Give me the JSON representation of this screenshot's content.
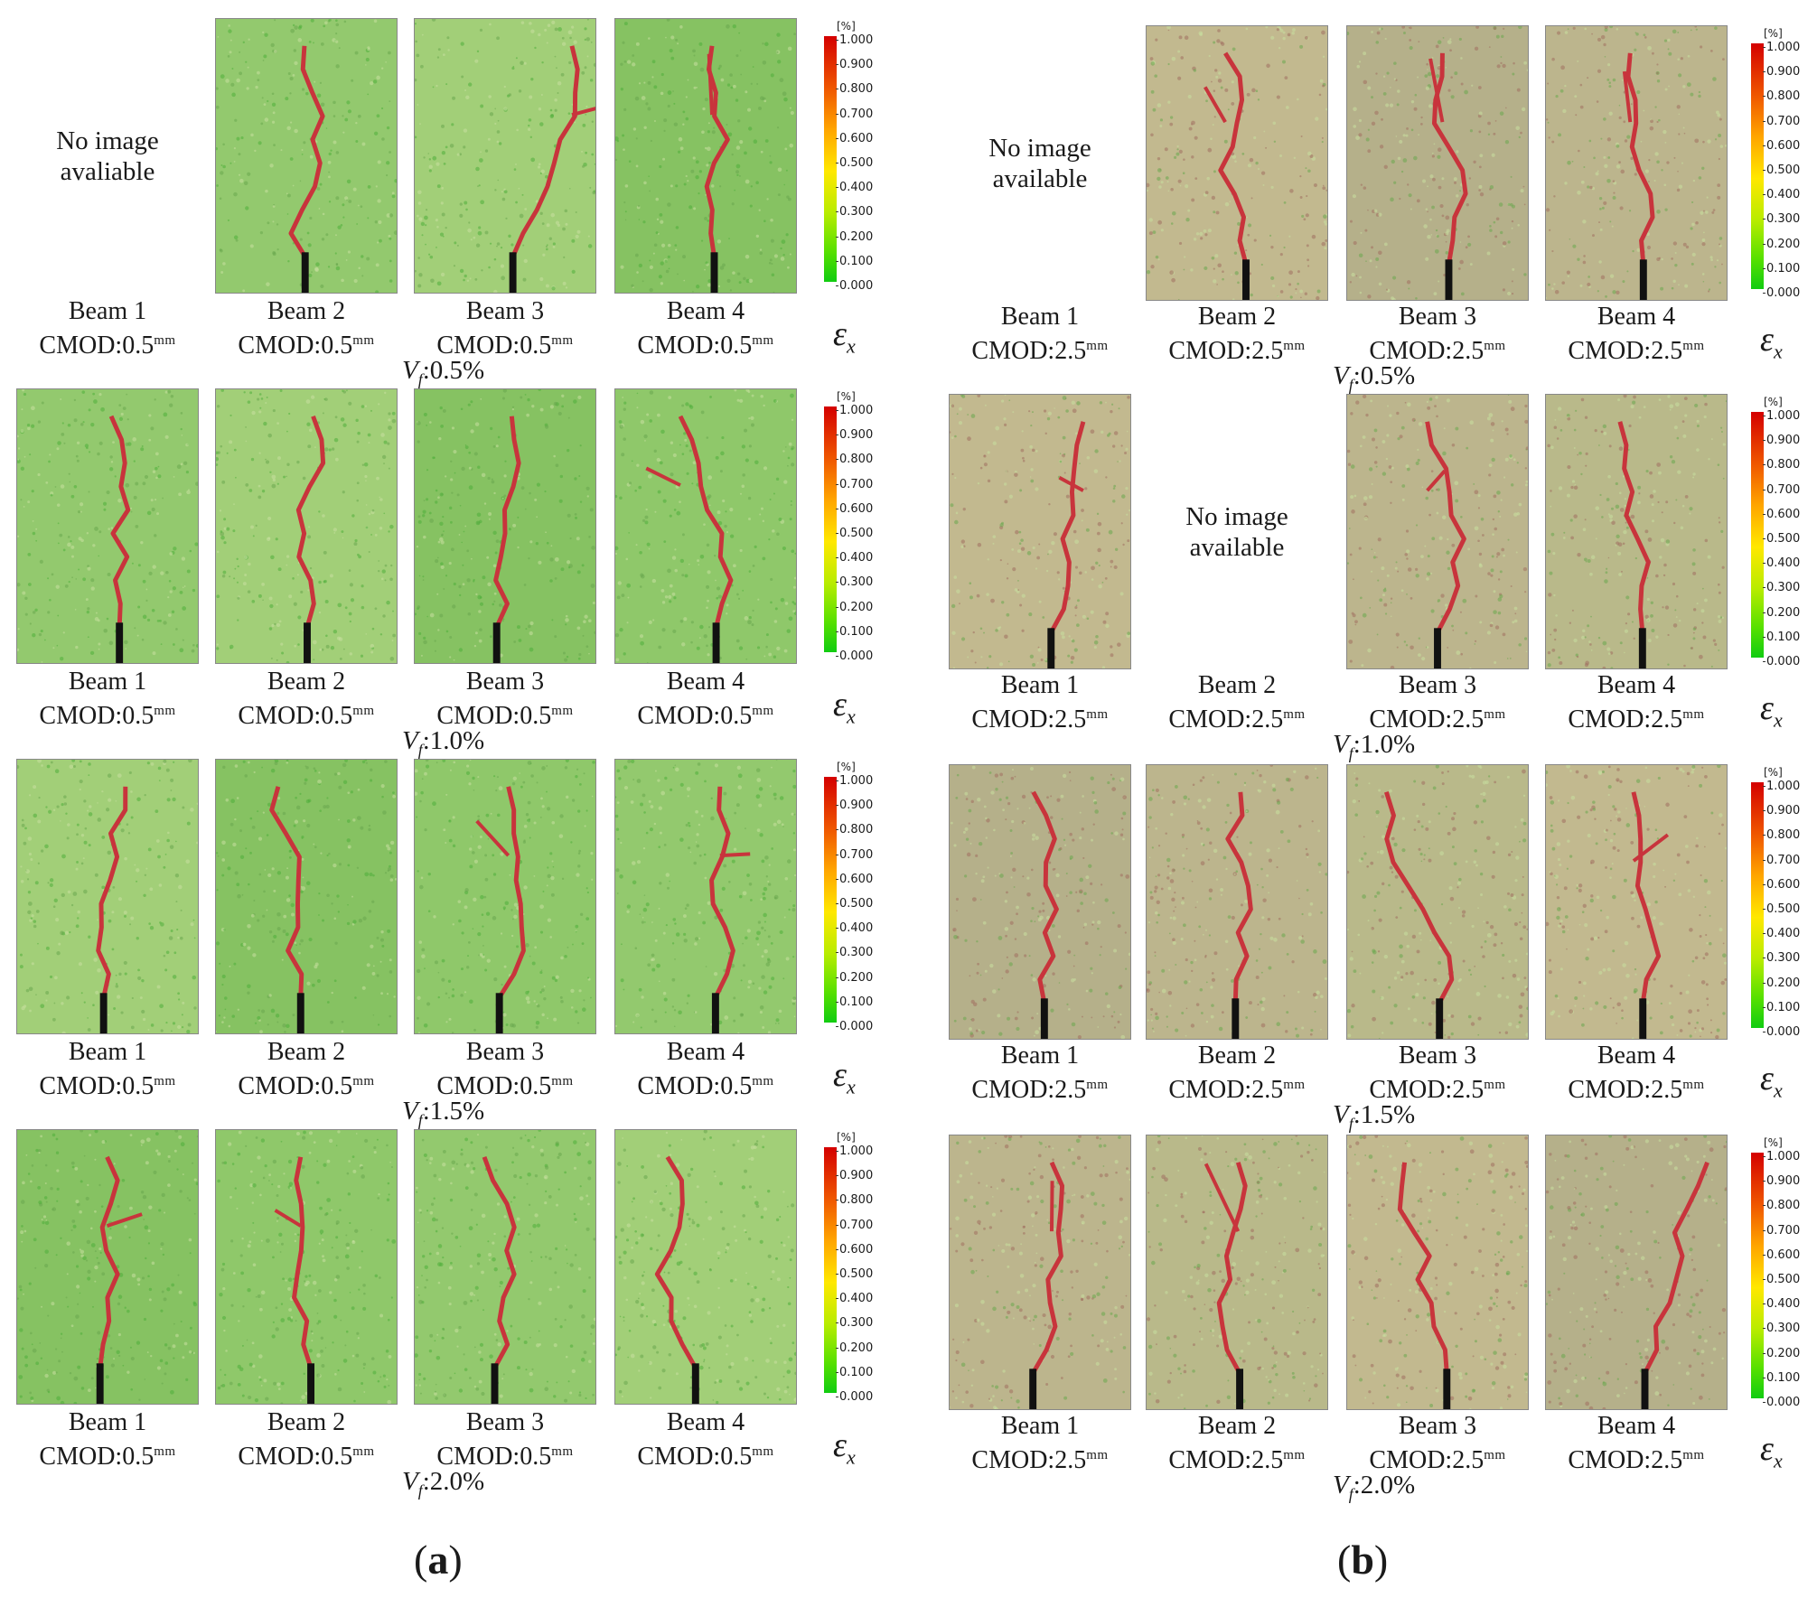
{
  "colorbar": {
    "unit": "[%]",
    "ticks": [
      "1.000",
      "0.900",
      "0.800",
      "0.700",
      "0.600",
      "0.500",
      "0.400",
      "0.300",
      "0.200",
      "0.100",
      "0.000"
    ],
    "colors": [
      "#d40000",
      "#f05a00",
      "#ffa500",
      "#ffe800",
      "#b8ec00",
      "#55e000",
      "#11cc11"
    ]
  },
  "strain_symbol": "ε",
  "strain_subscript": "x",
  "vf_prefix": "V",
  "vf_subscript": "f",
  "panels": [
    {
      "label": "a",
      "rows": [
        {
          "vf_value": ":0.5%",
          "beams": [
            {
              "name": "Beam 1",
              "cmod": "CMOD:0.5",
              "unit": "mm",
              "image": false,
              "no_image_text": "No image\navaliable"
            },
            {
              "name": "Beam 2",
              "cmod": "CMOD:0.5",
              "unit": "mm",
              "image": true
            },
            {
              "name": "Beam 3",
              "cmod": "CMOD:0.5",
              "unit": "mm",
              "image": true
            },
            {
              "name": "Beam 4",
              "cmod": "CMOD:0.5",
              "unit": "mm",
              "image": true
            }
          ]
        },
        {
          "vf_value": ":1.0%",
          "beams": [
            {
              "name": "Beam 1",
              "cmod": "CMOD:0.5",
              "unit": "mm",
              "image": true
            },
            {
              "name": "Beam 2",
              "cmod": "CMOD:0.5",
              "unit": "mm",
              "image": true
            },
            {
              "name": "Beam 3",
              "cmod": "CMOD:0.5",
              "unit": "mm",
              "image": true
            },
            {
              "name": "Beam 4",
              "cmod": "CMOD:0.5",
              "unit": "mm",
              "image": true
            }
          ]
        },
        {
          "vf_value": ":1.5%",
          "beams": [
            {
              "name": "Beam 1",
              "cmod": "CMOD:0.5",
              "unit": "mm",
              "image": true
            },
            {
              "name": "Beam 2",
              "cmod": "CMOD:0.5",
              "unit": "mm",
              "image": true
            },
            {
              "name": "Beam 3",
              "cmod": "CMOD:0.5",
              "unit": "mm",
              "image": true
            },
            {
              "name": "Beam 4",
              "cmod": "CMOD:0.5",
              "unit": "mm",
              "image": true
            }
          ]
        },
        {
          "vf_value": ":2.0%",
          "beams": [
            {
              "name": "Beam 1",
              "cmod": "CMOD:0.5",
              "unit": "mm",
              "image": true
            },
            {
              "name": "Beam 2",
              "cmod": "CMOD:0.5",
              "unit": "mm",
              "image": true
            },
            {
              "name": "Beam 3",
              "cmod": "CMOD:0.5",
              "unit": "mm",
              "image": true
            },
            {
              "name": "Beam 4",
              "cmod": "CMOD:0.5",
              "unit": "mm",
              "image": true
            }
          ]
        }
      ]
    },
    {
      "label": "b",
      "rows": [
        {
          "vf_value": ":0.5%",
          "beams": [
            {
              "name": "Beam 1",
              "cmod": "CMOD:2.5",
              "unit": "mm",
              "image": false,
              "no_image_text": "No image\navailable"
            },
            {
              "name": "Beam 2",
              "cmod": "CMOD:2.5",
              "unit": "mm",
              "image": true
            },
            {
              "name": "Beam 3",
              "cmod": "CMOD:2.5",
              "unit": "mm",
              "image": true
            },
            {
              "name": "Beam 4",
              "cmod": "CMOD:2.5",
              "unit": "mm",
              "image": true
            }
          ]
        },
        {
          "vf_value": ":1.0%",
          "beams": [
            {
              "name": "Beam 1",
              "cmod": "CMOD:2.5",
              "unit": "mm",
              "image": true
            },
            {
              "name": "Beam 2",
              "cmod": "CMOD:2.5",
              "unit": "mm",
              "image": false,
              "no_image_text": "No image\navailable"
            },
            {
              "name": "Beam 3",
              "cmod": "CMOD:2.5",
              "unit": "mm",
              "image": true
            },
            {
              "name": "Beam 4",
              "cmod": "CMOD:2.5",
              "unit": "mm",
              "image": true
            }
          ]
        },
        {
          "vf_value": ":1.5%",
          "beams": [
            {
              "name": "Beam 1",
              "cmod": "CMOD:2.5",
              "unit": "mm",
              "image": true
            },
            {
              "name": "Beam 2",
              "cmod": "CMOD:2.5",
              "unit": "mm",
              "image": true
            },
            {
              "name": "Beam 3",
              "cmod": "CMOD:2.5",
              "unit": "mm",
              "image": true
            },
            {
              "name": "Beam 4",
              "cmod": "CMOD:2.5",
              "unit": "mm",
              "image": true
            }
          ]
        },
        {
          "vf_value": ":2.0%",
          "beams": [
            {
              "name": "Beam 1",
              "cmod": "CMOD:2.5",
              "unit": "mm",
              "image": true
            },
            {
              "name": "Beam 2",
              "cmod": "CMOD:2.5",
              "unit": "mm",
              "image": true
            },
            {
              "name": "Beam 3",
              "cmod": "CMOD:2.5",
              "unit": "mm",
              "image": true
            },
            {
              "name": "Beam 4",
              "cmod": "CMOD:2.5",
              "unit": "mm",
              "image": true
            }
          ]
        }
      ]
    }
  ]
}
